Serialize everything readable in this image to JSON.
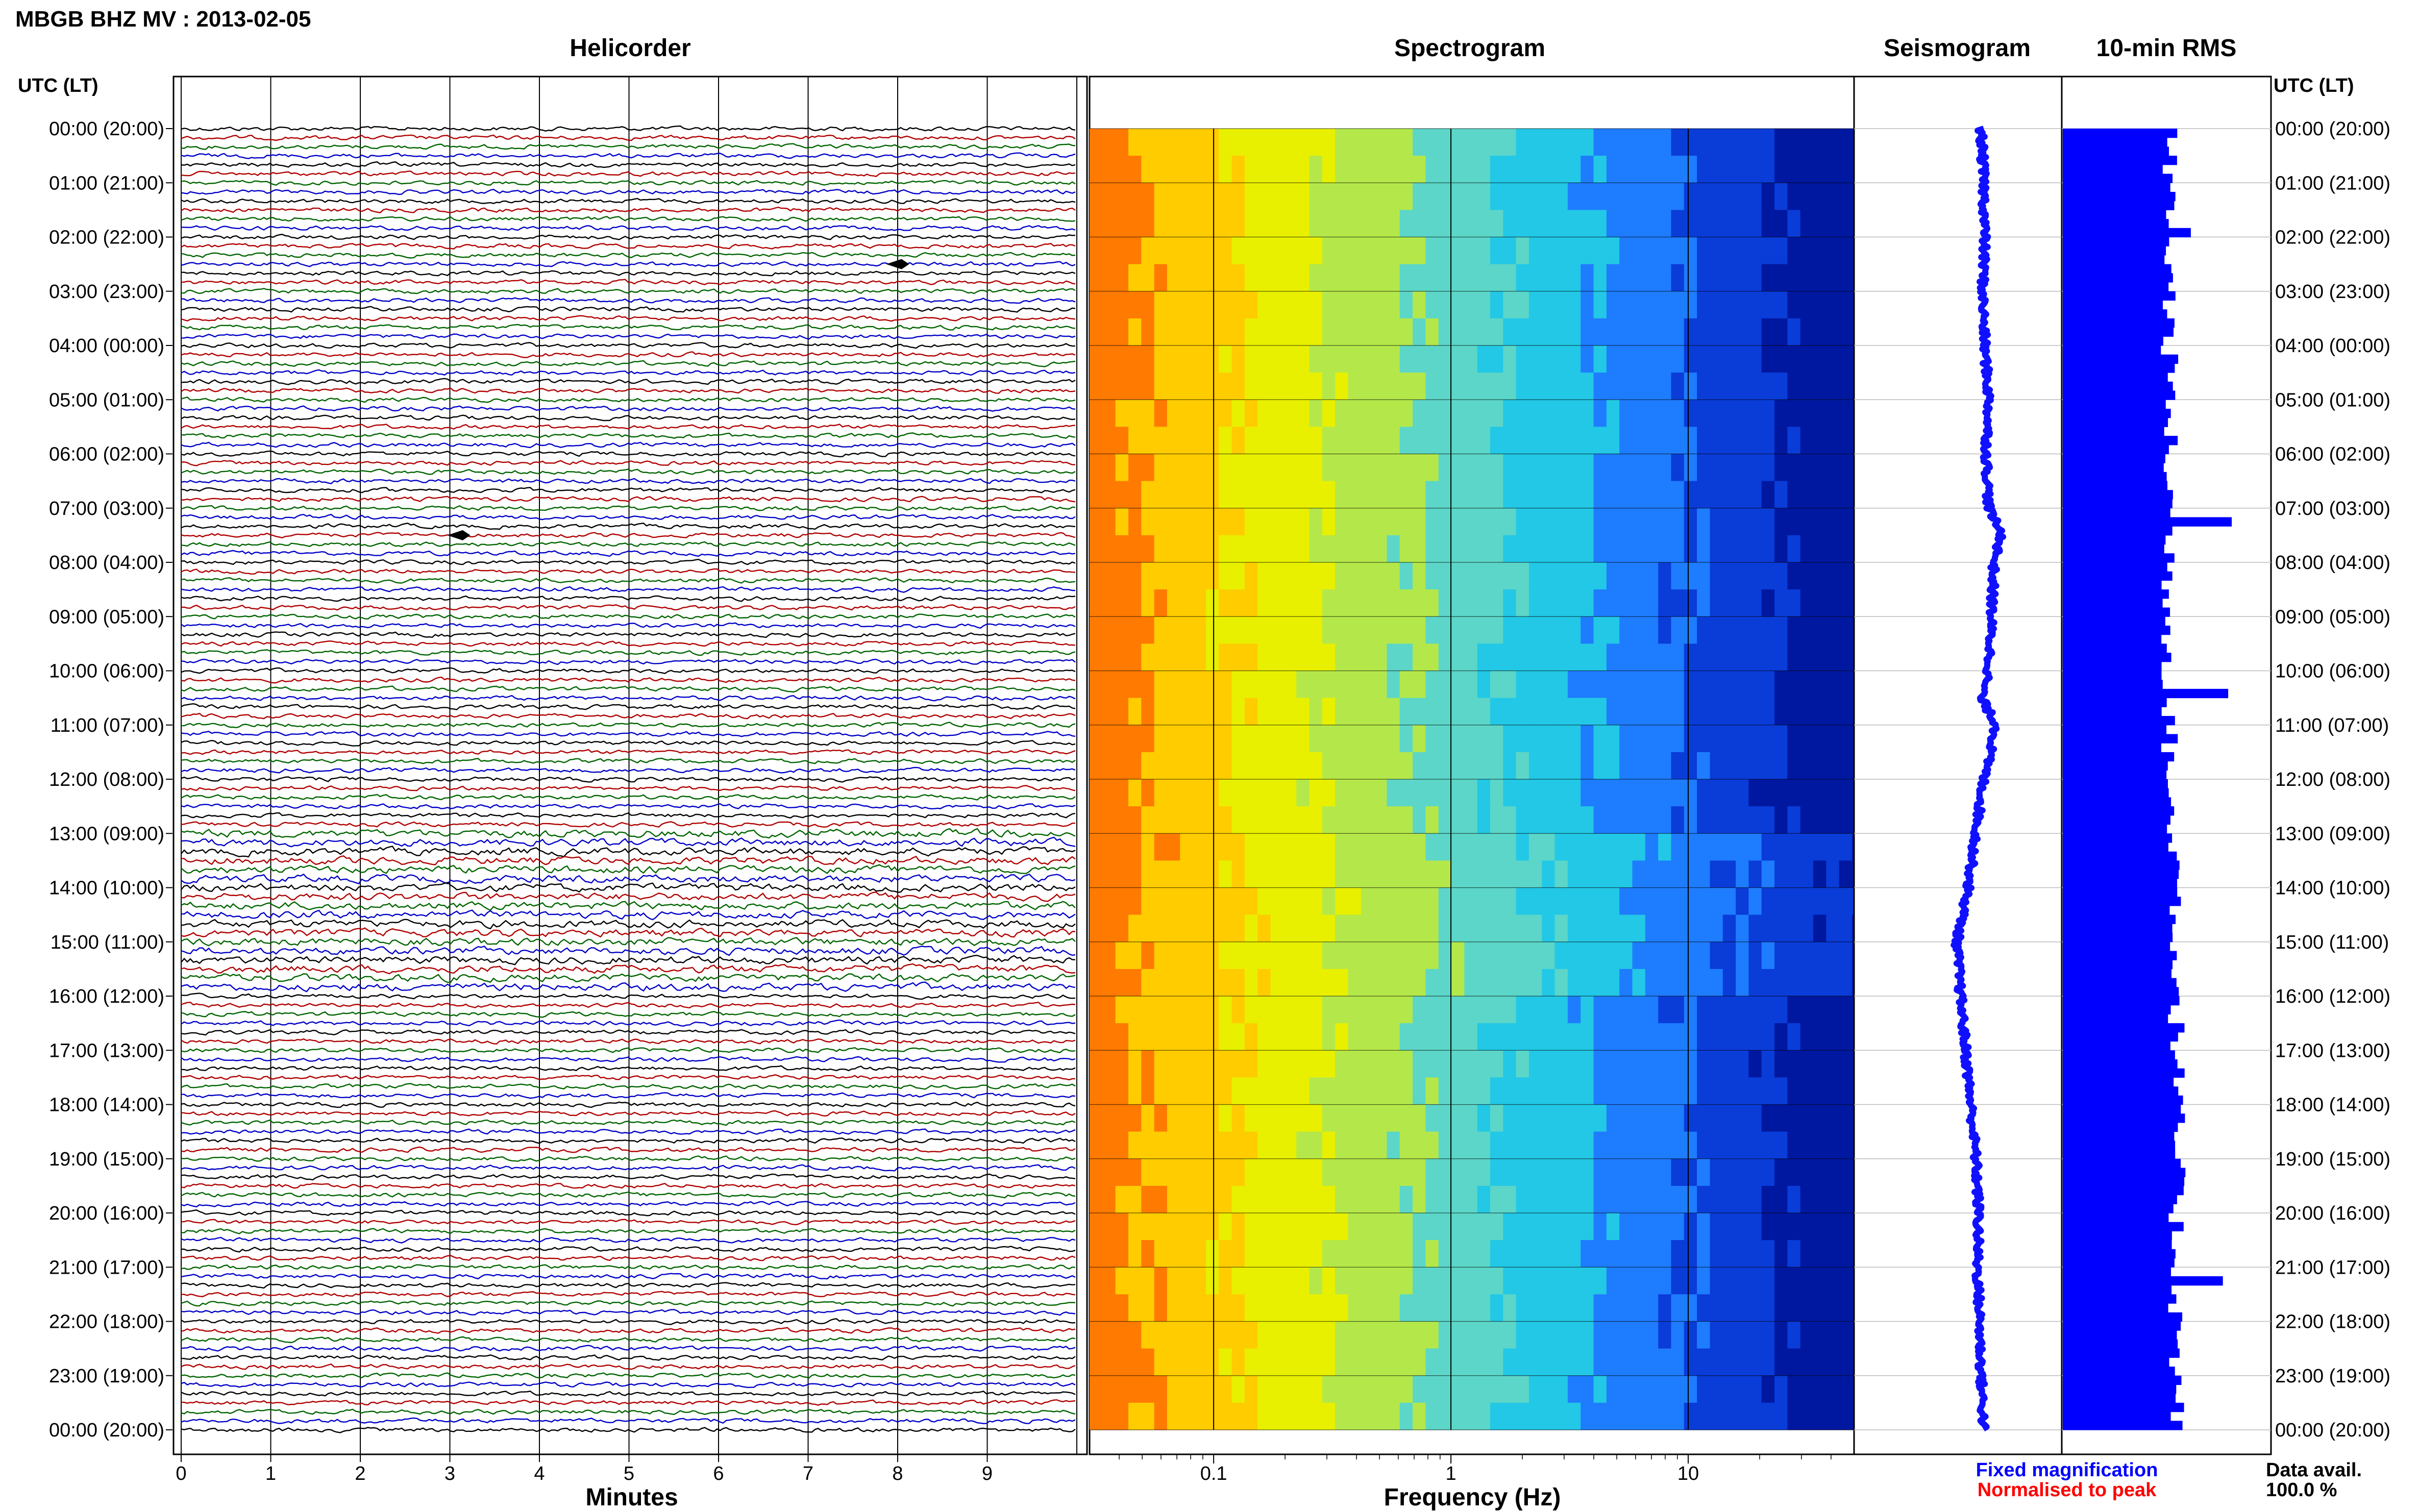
{
  "header": {
    "title": "MBGB BHZ MV : 2013-02-05"
  },
  "panels": {
    "helicorder": "Helicorder",
    "spectrogram": "Spectrogram",
    "seismogram": "Seismogram",
    "rms": "10-min RMS"
  },
  "axes": {
    "left_label": "UTC (LT)",
    "right_label": "UTC (LT)",
    "time_ticks": [
      "00:00 (20:00)",
      "01:00 (21:00)",
      "02:00 (22:00)",
      "03:00 (23:00)",
      "04:00 (00:00)",
      "05:00 (01:00)",
      "06:00 (02:00)",
      "07:00 (03:00)",
      "08:00 (04:00)",
      "09:00 (05:00)",
      "10:00 (06:00)",
      "11:00 (07:00)",
      "12:00 (08:00)",
      "13:00 (09:00)",
      "14:00 (10:00)",
      "15:00 (11:00)",
      "16:00 (12:00)",
      "17:00 (13:00)",
      "18:00 (14:00)",
      "19:00 (15:00)",
      "20:00 (16:00)",
      "21:00 (17:00)",
      "22:00 (18:00)",
      "23:00 (19:00)",
      "00:00 (20:00)"
    ],
    "minutes_label": "Minutes",
    "minutes_ticks": [
      "0",
      "1",
      "2",
      "3",
      "4",
      "5",
      "6",
      "7",
      "8",
      "9"
    ],
    "frequency_label": "Frequency (Hz)",
    "frequency_ticks": [
      "0.1",
      "1",
      "10"
    ]
  },
  "legend": {
    "fixed": "Fixed magnification",
    "normalised": "Normalised to peak",
    "fixed_color": "#0000ff",
    "normalised_color": "#ff0000"
  },
  "data_avail": {
    "label": "Data avail.",
    "value": "100.0 %"
  },
  "colors": {
    "trace_cycle": [
      "#000000",
      "#b00000",
      "#006400",
      "#0000c8"
    ],
    "seismogram": "#1010ff",
    "rms_bars": "#0000ff",
    "spectrogram_ramp": [
      "#ff7a00",
      "#ffcc00",
      "#e8f000",
      "#b4e84a",
      "#5cd6c8",
      "#22c8e6",
      "#1e7cff",
      "#0a3cd8",
      "#0018a0"
    ]
  },
  "chart_data": [
    {
      "type": "helicorder",
      "title": "Helicorder",
      "xlabel": "Minutes",
      "ylabel": "UTC (LT)",
      "xlim": [
        0,
        10
      ],
      "hours": 24,
      "lines_per_hour": 6,
      "minutes_per_line": 10,
      "high_amplitude_hours": [
        13,
        14,
        15
      ],
      "events": [
        {
          "hour": 7,
          "minute": 3.2,
          "label": ""
        },
        {
          "hour": 2,
          "minute": 8.1,
          "label": ""
        }
      ]
    },
    {
      "type": "heatmap",
      "title": "Spectrogram",
      "xlabel": "Frequency (Hz)",
      "x_scale": "log",
      "xlim": [
        0.03,
        50
      ],
      "x_ticks": [
        0.1,
        1,
        10
      ],
      "y_range_utc_hours": [
        0,
        24
      ]
    },
    {
      "type": "line",
      "title": "Seismogram",
      "y_utc_hour": [
        0,
        1,
        2,
        3,
        4,
        5,
        6,
        7,
        7.5,
        8,
        9,
        10,
        10.5,
        11,
        12,
        13,
        14,
        15,
        16,
        17,
        18,
        19,
        20,
        21,
        22,
        23,
        24
      ],
      "x_offset": [
        0.55,
        0.6,
        0.62,
        0.58,
        0.62,
        0.7,
        0.65,
        0.7,
        0.95,
        0.8,
        0.75,
        0.7,
        0.55,
        0.85,
        0.6,
        0.45,
        0.3,
        0.08,
        0.15,
        0.25,
        0.35,
        0.45,
        0.5,
        0.48,
        0.52,
        0.55,
        0.6
      ],
      "xlim": [
        -1,
        1
      ]
    },
    {
      "type": "bar",
      "title": "10-min RMS",
      "orientation": "horizontal",
      "bins": 144,
      "mean_relative": 0.6,
      "peaks": [
        {
          "hour": 7.2,
          "value": 0.95
        },
        {
          "hour": 10.3,
          "value": 0.93
        },
        {
          "hour": 1.8,
          "value": 0.72
        },
        {
          "hour": 21.1,
          "value": 0.9
        }
      ]
    }
  ]
}
